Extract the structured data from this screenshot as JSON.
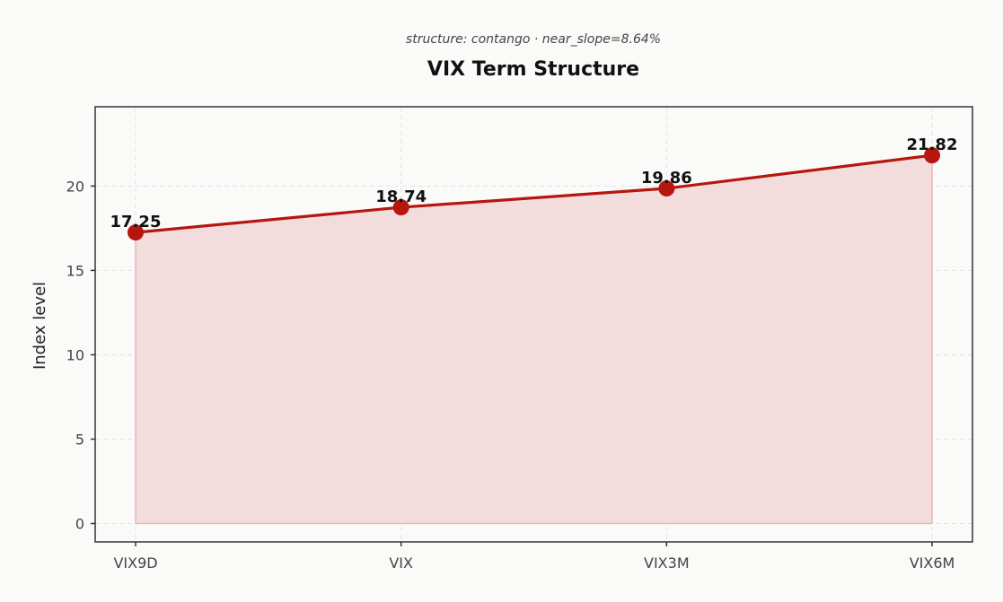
{
  "chart_data": {
    "type": "line",
    "subtitle": "structure: contango · near_slope=8.64%",
    "title": "VIX Term Structure",
    "xlabel": "",
    "ylabel": "Index level",
    "categories": [
      "VIX9D",
      "VIX",
      "VIX3M",
      "VIX6M"
    ],
    "series": [
      {
        "values": [
          17.25,
          18.74,
          19.86,
          21.82
        ],
        "labels": [
          "17.25",
          "18.74",
          "19.86",
          "21.82"
        ]
      }
    ],
    "ylim": [
      -1.09,
      24.7
    ],
    "yticks": [
      0,
      5,
      10,
      15,
      20
    ],
    "ytick_labels": [
      "0",
      "5",
      "10",
      "15",
      "20"
    ],
    "grid": true,
    "area_fill": true,
    "colors": {
      "line": "#b5170f",
      "marker": "#b5170f",
      "area": "#f2dcdc",
      "area_edge": "#e6b8b8"
    }
  }
}
